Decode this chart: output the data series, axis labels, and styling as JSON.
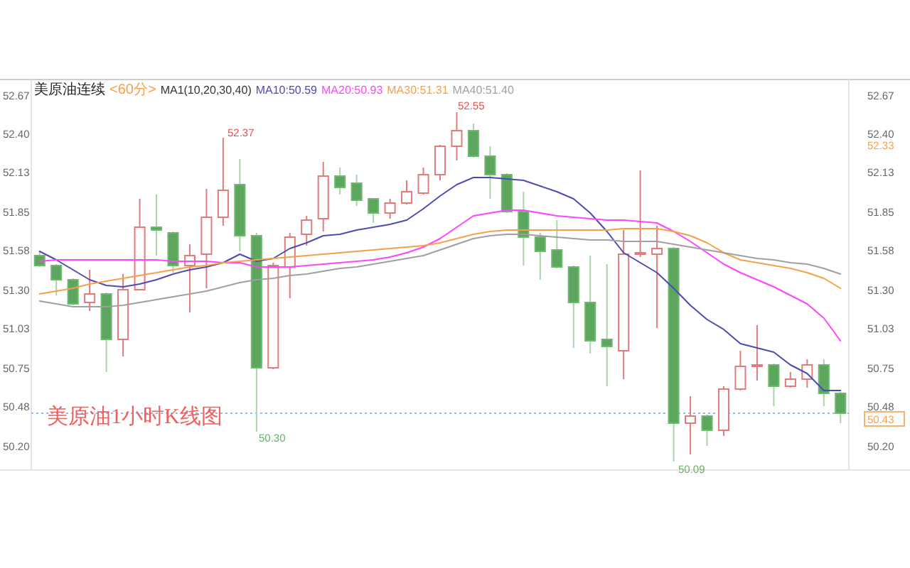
{
  "chart_data": {
    "type": "candlestick",
    "title": "美原油连续",
    "subtitle": "<60分>",
    "categories": [
      null,
      null,
      null,
      null,
      null,
      null,
      null,
      null,
      null,
      null,
      null,
      null,
      null,
      null,
      null,
      null,
      null,
      null,
      null,
      null,
      null,
      null,
      null,
      null,
      null,
      null,
      null,
      null,
      null,
      null,
      null,
      null,
      null,
      null,
      null,
      null,
      null,
      null,
      null,
      null,
      null,
      null,
      null,
      null,
      null,
      null,
      null,
      null,
      null
    ],
    "ohlc": [
      [
        51.54,
        51.57,
        51.46,
        51.47
      ],
      [
        51.47,
        51.48,
        51.26,
        51.37
      ],
      [
        51.37,
        51.38,
        51.19,
        51.2
      ],
      [
        51.21,
        51.44,
        51.15,
        51.27
      ],
      [
        51.27,
        51.28,
        50.72,
        50.95
      ],
      [
        50.95,
        51.41,
        50.83,
        51.3
      ],
      [
        51.3,
        51.94,
        51.3,
        51.74
      ],
      [
        51.74,
        51.97,
        51.54,
        51.72
      ],
      [
        51.7,
        51.71,
        51.42,
        51.47
      ],
      [
        51.47,
        51.62,
        51.14,
        51.54
      ],
      [
        51.55,
        52.01,
        51.31,
        51.81
      ],
      [
        51.81,
        52.37,
        51.75,
        52.0
      ],
      [
        52.04,
        52.22,
        51.57,
        51.68
      ],
      [
        51.68,
        51.7,
        50.3,
        50.75
      ],
      [
        50.75,
        51.49,
        50.74,
        51.47
      ],
      [
        51.46,
        51.7,
        51.24,
        51.67
      ],
      [
        51.69,
        51.82,
        51.61,
        51.79
      ],
      [
        51.8,
        52.2,
        51.71,
        52.1
      ],
      [
        52.1,
        52.16,
        51.97,
        52.02
      ],
      [
        52.05,
        52.11,
        51.89,
        51.93
      ],
      [
        51.94,
        51.94,
        51.77,
        51.84
      ],
      [
        51.84,
        51.94,
        51.8,
        51.91
      ],
      [
        51.91,
        52.07,
        51.9,
        51.99
      ],
      [
        51.98,
        52.16,
        51.97,
        52.11
      ],
      [
        52.11,
        52.32,
        52.07,
        52.31
      ],
      [
        52.31,
        52.55,
        52.21,
        52.42
      ],
      [
        52.42,
        52.47,
        52.23,
        52.24
      ],
      [
        52.24,
        52.31,
        51.94,
        52.11
      ],
      [
        52.11,
        52.12,
        51.84,
        51.85
      ],
      [
        51.85,
        51.99,
        51.47,
        51.67
      ],
      [
        51.67,
        51.7,
        51.37,
        51.57
      ],
      [
        51.58,
        51.79,
        51.45,
        51.46
      ],
      [
        51.46,
        51.47,
        50.89,
        51.21
      ],
      [
        51.21,
        51.54,
        50.85,
        50.94
      ],
      [
        50.95,
        51.48,
        50.62,
        50.9
      ],
      [
        50.87,
        51.72,
        50.67,
        51.55
      ],
      [
        51.55,
        52.14,
        51.53,
        51.56
      ],
      [
        51.55,
        51.75,
        51.03,
        51.59
      ],
      [
        51.59,
        51.6,
        50.09,
        50.36
      ],
      [
        50.36,
        50.55,
        50.14,
        50.41
      ],
      [
        50.41,
        50.42,
        50.2,
        50.31
      ],
      [
        50.31,
        50.62,
        50.27,
        50.6
      ],
      [
        50.6,
        50.87,
        50.59,
        50.76
      ],
      [
        50.76,
        51.05,
        50.66,
        50.77
      ],
      [
        50.77,
        50.78,
        50.48,
        50.62
      ],
      [
        50.62,
        50.72,
        50.61,
        50.67
      ],
      [
        50.67,
        50.81,
        50.61,
        50.77
      ],
      [
        50.77,
        50.81,
        50.48,
        50.57
      ],
      [
        50.57,
        50.58,
        50.36,
        50.43
      ]
    ],
    "series": [
      {
        "type": "line",
        "name": "MA10:50.59",
        "color": "#4b4bb4",
        "values": [
          51.57,
          51.51,
          51.44,
          51.37,
          51.33,
          51.32,
          51.34,
          51.37,
          51.41,
          51.44,
          51.46,
          51.49,
          51.55,
          51.5,
          51.52,
          51.59,
          51.63,
          51.68,
          51.69,
          51.72,
          51.74,
          51.76,
          51.79,
          51.87,
          51.96,
          52.04,
          52.09,
          52.09,
          52.08,
          52.07,
          52.03,
          51.99,
          51.94,
          51.84,
          51.71,
          51.56,
          51.49,
          51.42,
          51.31,
          51.19,
          51.09,
          51.02,
          50.92,
          50.89,
          50.86,
          50.77,
          50.71,
          50.59,
          50.59
        ]
      },
      {
        "type": "line",
        "name": "MA20:50.93",
        "color": "#ff44ff",
        "values": [
          51.5,
          51.51,
          51.51,
          51.51,
          51.51,
          51.51,
          51.51,
          51.51,
          51.5,
          51.5,
          51.5,
          51.49,
          51.49,
          51.46,
          51.46,
          51.46,
          51.47,
          51.48,
          51.49,
          51.5,
          51.51,
          51.53,
          51.56,
          51.6,
          51.66,
          51.74,
          51.82,
          51.84,
          51.86,
          51.86,
          51.84,
          51.82,
          51.81,
          51.8,
          51.79,
          51.79,
          51.78,
          51.77,
          51.71,
          51.64,
          51.56,
          51.48,
          51.42,
          51.37,
          51.32,
          51.26,
          51.2,
          51.1,
          50.94
        ]
      },
      {
        "type": "line",
        "name": "MA30:51.31",
        "color": "#f5a04a",
        "values": [
          51.27,
          51.29,
          51.31,
          51.34,
          51.36,
          51.38,
          51.4,
          51.42,
          51.44,
          51.46,
          51.47,
          51.49,
          51.5,
          51.51,
          51.52,
          51.53,
          51.54,
          51.55,
          51.56,
          51.57,
          51.58,
          51.59,
          51.6,
          51.61,
          51.63,
          51.66,
          51.69,
          51.71,
          51.72,
          51.72,
          51.72,
          51.72,
          51.72,
          51.72,
          51.72,
          51.73,
          51.73,
          51.73,
          51.71,
          51.68,
          51.63,
          51.56,
          51.51,
          51.49,
          51.47,
          51.45,
          51.42,
          51.38,
          51.31
        ]
      },
      {
        "type": "line",
        "name": "MA40:51.40",
        "color": "#a0a0a0",
        "values": [
          51.22,
          51.2,
          51.18,
          51.18,
          51.18,
          51.19,
          51.21,
          51.23,
          51.25,
          51.27,
          51.29,
          51.32,
          51.35,
          51.37,
          51.38,
          51.4,
          51.41,
          51.43,
          51.45,
          51.46,
          51.48,
          51.5,
          51.52,
          51.54,
          51.58,
          51.62,
          51.66,
          51.68,
          51.69,
          51.69,
          51.68,
          51.67,
          51.66,
          51.65,
          51.65,
          51.64,
          51.64,
          51.64,
          51.62,
          51.6,
          51.58,
          51.56,
          51.54,
          51.52,
          51.51,
          51.49,
          51.48,
          51.45,
          51.41
        ]
      }
    ],
    "ylim": [
      50.04,
      52.77
    ],
    "yticks": [
      52.67,
      {
        "value": 52.4,
        "label": "52.40"
      },
      52.13,
      51.85,
      51.58,
      {
        "value": 51.3,
        "label": "51.30"
      },
      51.03,
      50.75,
      50.48,
      {
        "value": 50.2,
        "label": "50.20"
      }
    ],
    "y2lim": [
      50.04,
      52.77
    ],
    "y2ticks": [
      52.67,
      {
        "value": 52.4,
        "label": "52.40"
      },
      52.13,
      51.85,
      51.58,
      {
        "value": 51.3,
        "label": "51.30"
      },
      51.03,
      50.75,
      50.48,
      {
        "value": 50.2,
        "label": "50.20"
      }
    ],
    "tick_labels": "y",
    "legend": "top",
    "ref_lines": [
      {
        "axis": "y2",
        "value": 50.43,
        "label": "50.43",
        "color": "#8fbce8",
        "line_style": "dotted"
      }
    ],
    "annotations": [
      "MA1(10,20,30,40)",
      "美原油1小时K线图",
      "52.37",
      "52.55",
      "50.30",
      "50.09",
      "52.33"
    ]
  }
}
